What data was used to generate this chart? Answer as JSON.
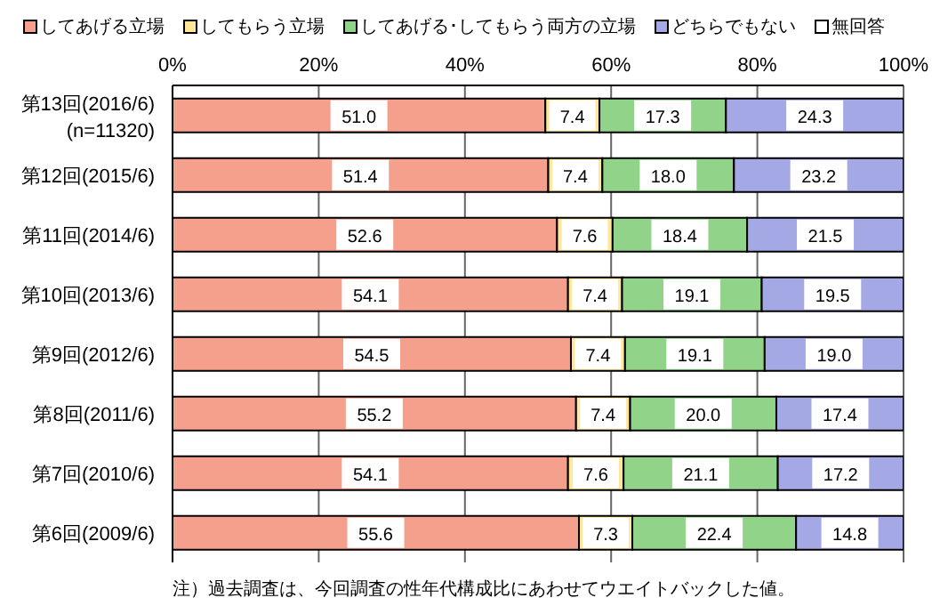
{
  "chart_data": {
    "type": "bar",
    "orientation": "horizontal",
    "stacked": true,
    "categories": [
      "第13回(2016/6)\n(n=11320)",
      "第12回(2015/6)",
      "第11回(2014/6)",
      "第10回(2013/6)",
      "第9回(2012/6)",
      "第8回(2011/6)",
      "第7回(2010/6)",
      "第6回(2009/6)"
    ],
    "series": [
      {
        "name": "してあげる立場",
        "color": "#f4a08c",
        "values": [
          51.0,
          51.4,
          52.6,
          54.1,
          54.5,
          55.2,
          54.1,
          55.6
        ],
        "value_labels": [
          "51.0",
          "51.4",
          "52.6",
          "54.1",
          "54.5",
          "55.2",
          "54.1",
          "55.6"
        ]
      },
      {
        "name": "してもらう立場",
        "color": "#ffe699",
        "values": [
          7.4,
          7.4,
          7.6,
          7.4,
          7.4,
          7.4,
          7.6,
          7.3
        ],
        "value_labels": [
          "7.4",
          "7.4",
          "7.6",
          "7.4",
          "7.4",
          "7.4",
          "7.6",
          "7.3"
        ]
      },
      {
        "name": "してあげる･してもらう両方の立場",
        "color": "#92d38a",
        "values": [
          17.3,
          18.0,
          18.4,
          19.1,
          19.1,
          20.0,
          21.1,
          22.4
        ],
        "value_labels": [
          "17.3",
          "18.0",
          "18.4",
          "19.1",
          "19.1",
          "20.0",
          "21.1",
          "22.4"
        ]
      },
      {
        "name": "どちらでもない",
        "color": "#a4a8e4",
        "values": [
          24.3,
          23.2,
          21.5,
          19.5,
          19.0,
          17.4,
          17.2,
          14.8
        ],
        "value_labels": [
          "24.3",
          "23.2",
          "21.5",
          "19.5",
          "19.0",
          "17.4",
          "17.2",
          "14.8"
        ]
      },
      {
        "name": "無回答",
        "color": "#ffffff",
        "values": [
          0,
          0,
          0,
          0,
          0,
          0,
          0,
          0
        ],
        "value_labels": [
          null,
          null,
          null,
          null,
          null,
          null,
          null,
          null
        ]
      }
    ],
    "xlim": [
      0,
      100
    ],
    "xticks": [
      {
        "value": 0,
        "label": "0%"
      },
      {
        "value": 20,
        "label": "20%"
      },
      {
        "value": 40,
        "label": "40%"
      },
      {
        "value": 60,
        "label": "60%"
      },
      {
        "value": 80,
        "label": "80%"
      },
      {
        "value": 100,
        "label": "100%"
      }
    ],
    "grid": "x",
    "legend": "top",
    "annotations": [
      "注）過去調査は、今回調査の性年代構成比にあわせてウエイトバックした値。"
    ]
  }
}
